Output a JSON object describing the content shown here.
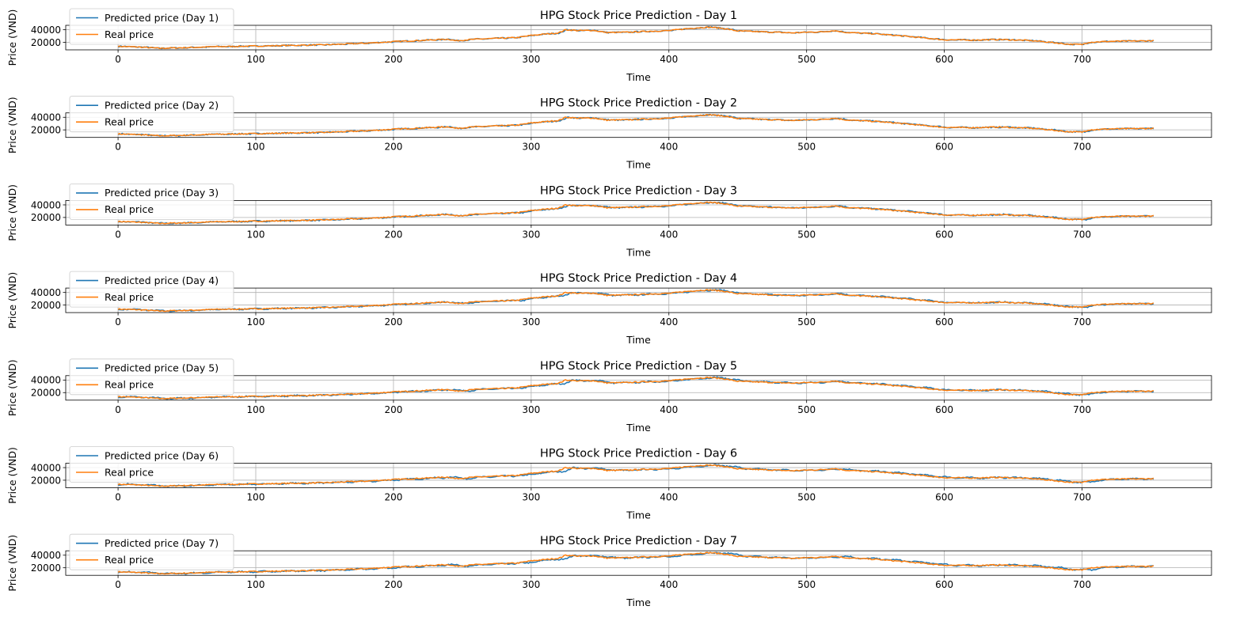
{
  "chart_data": [
    {
      "type": "line",
      "title": "HPG Stock Price Prediction - Day 1",
      "xlabel": "Time",
      "ylabel": "Price (VND)",
      "xlim": [
        -38,
        794
      ],
      "ylim": [
        8000,
        47000
      ],
      "x_ticks": [
        0,
        100,
        200,
        300,
        400,
        500,
        600,
        700
      ],
      "y_ticks": [
        20000,
        40000
      ],
      "grid": true,
      "legend_position": "upper-left",
      "series": [
        {
          "name": "Predicted price (Day 1)",
          "color": "#1f77b4"
        },
        {
          "name": "Real price",
          "color": "#ff7f0e"
        }
      ]
    },
    {
      "type": "line",
      "title": "HPG Stock Price Prediction - Day 2",
      "xlabel": "Time",
      "ylabel": "Price (VND)",
      "xlim": [
        -38,
        794
      ],
      "ylim": [
        8000,
        47000
      ],
      "x_ticks": [
        0,
        100,
        200,
        300,
        400,
        500,
        600,
        700
      ],
      "y_ticks": [
        20000,
        40000
      ],
      "grid": true,
      "legend_position": "upper-left",
      "series": [
        {
          "name": "Predicted price (Day 2)",
          "color": "#1f77b4"
        },
        {
          "name": "Real price",
          "color": "#ff7f0e"
        }
      ]
    },
    {
      "type": "line",
      "title": "HPG Stock Price Prediction - Day 3",
      "xlabel": "Time",
      "ylabel": "Price (VND)",
      "xlim": [
        -38,
        794
      ],
      "ylim": [
        8000,
        47000
      ],
      "x_ticks": [
        0,
        100,
        200,
        300,
        400,
        500,
        600,
        700
      ],
      "y_ticks": [
        20000,
        40000
      ],
      "grid": true,
      "legend_position": "upper-left",
      "series": [
        {
          "name": "Predicted price (Day 3)",
          "color": "#1f77b4"
        },
        {
          "name": "Real price",
          "color": "#ff7f0e"
        }
      ]
    },
    {
      "type": "line",
      "title": "HPG Stock Price Prediction - Day 4",
      "xlabel": "Time",
      "ylabel": "Price (VND)",
      "xlim": [
        -38,
        794
      ],
      "ylim": [
        8000,
        47000
      ],
      "x_ticks": [
        0,
        100,
        200,
        300,
        400,
        500,
        600,
        700
      ],
      "y_ticks": [
        20000,
        40000
      ],
      "grid": true,
      "legend_position": "upper-left",
      "series": [
        {
          "name": "Predicted price (Day 4)",
          "color": "#1f77b4"
        },
        {
          "name": "Real price",
          "color": "#ff7f0e"
        }
      ]
    },
    {
      "type": "line",
      "title": "HPG Stock Price Prediction - Day 5",
      "xlabel": "Time",
      "ylabel": "Price (VND)",
      "xlim": [
        -38,
        794
      ],
      "ylim": [
        8000,
        47000
      ],
      "x_ticks": [
        0,
        100,
        200,
        300,
        400,
        500,
        600,
        700
      ],
      "y_ticks": [
        20000,
        40000
      ],
      "grid": true,
      "legend_position": "upper-left",
      "series": [
        {
          "name": "Predicted price (Day 5)",
          "color": "#1f77b4"
        },
        {
          "name": "Real price",
          "color": "#ff7f0e"
        }
      ]
    },
    {
      "type": "line",
      "title": "HPG Stock Price Prediction - Day 6",
      "xlabel": "Time",
      "ylabel": "Price (VND)",
      "xlim": [
        -38,
        794
      ],
      "ylim": [
        8000,
        47000
      ],
      "x_ticks": [
        0,
        100,
        200,
        300,
        400,
        500,
        600,
        700
      ],
      "y_ticks": [
        20000,
        40000
      ],
      "grid": true,
      "legend_position": "upper-left",
      "series": [
        {
          "name": "Predicted price (Day 6)",
          "color": "#1f77b4"
        },
        {
          "name": "Real price",
          "color": "#ff7f0e"
        }
      ]
    },
    {
      "type": "line",
      "title": "HPG Stock Price Prediction - Day 7",
      "xlabel": "Time",
      "ylabel": "Price (VND)",
      "xlim": [
        -38,
        794
      ],
      "ylim": [
        8000,
        47000
      ],
      "x_ticks": [
        0,
        100,
        200,
        300,
        400,
        500,
        600,
        700
      ],
      "y_ticks": [
        20000,
        40000
      ],
      "grid": true,
      "legend_position": "upper-left",
      "series": [
        {
          "name": "Predicted price (Day 7)",
          "color": "#1f77b4"
        },
        {
          "name": "Real price",
          "color": "#ff7f0e"
        }
      ]
    }
  ],
  "real_price_anchors": [
    [
      0,
      13500
    ],
    [
      15,
      12500
    ],
    [
      30,
      10500
    ],
    [
      50,
      11500
    ],
    [
      70,
      13000
    ],
    [
      100,
      14000
    ],
    [
      150,
      16000
    ],
    [
      180,
      18500
    ],
    [
      200,
      21000
    ],
    [
      230,
      24000
    ],
    [
      240,
      25000
    ],
    [
      245,
      22500
    ],
    [
      260,
      25000
    ],
    [
      290,
      27500
    ],
    [
      300,
      31000
    ],
    [
      320,
      35000
    ],
    [
      325,
      40000
    ],
    [
      335,
      38500
    ],
    [
      345,
      39000
    ],
    [
      355,
      35500
    ],
    [
      370,
      36000
    ],
    [
      385,
      37500
    ],
    [
      400,
      38500
    ],
    [
      410,
      41000
    ],
    [
      420,
      43000
    ],
    [
      430,
      44000
    ],
    [
      440,
      42000
    ],
    [
      450,
      38000
    ],
    [
      470,
      36500
    ],
    [
      490,
      35000
    ],
    [
      500,
      36000
    ],
    [
      510,
      36500
    ],
    [
      520,
      38500
    ],
    [
      530,
      35500
    ],
    [
      550,
      33500
    ],
    [
      570,
      30000
    ],
    [
      590,
      26000
    ],
    [
      600,
      24000
    ],
    [
      620,
      23500
    ],
    [
      640,
      24500
    ],
    [
      660,
      23000
    ],
    [
      670,
      21500
    ],
    [
      690,
      17000
    ],
    [
      700,
      16500
    ],
    [
      705,
      20000
    ],
    [
      720,
      21500
    ],
    [
      740,
      22000
    ],
    [
      752,
      22500
    ]
  ],
  "noise_amplitude": 900,
  "noise_seed": 7
}
